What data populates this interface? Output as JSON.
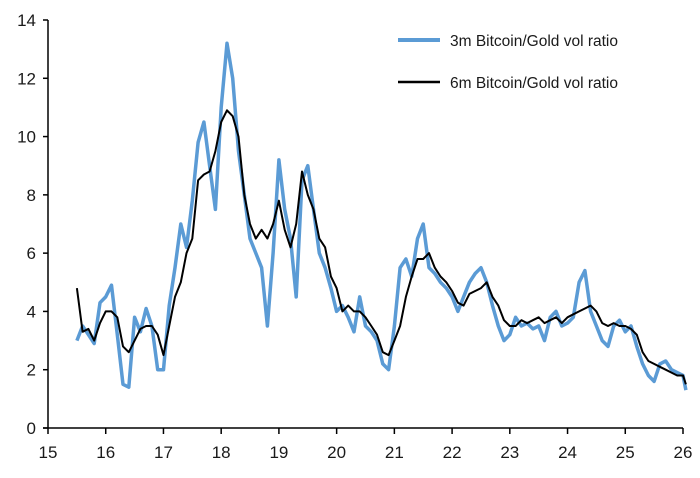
{
  "chart_data": {
    "type": "line",
    "title": "",
    "xlabel": "",
    "ylabel": "",
    "xlim": [
      15,
      26
    ],
    "ylim": [
      0,
      14
    ],
    "x_ticks": [
      "15",
      "16",
      "17",
      "18",
      "19",
      "20",
      "21",
      "22",
      "23",
      "24",
      "25",
      "26"
    ],
    "y_ticks": [
      "0",
      "2",
      "4",
      "6",
      "8",
      "10",
      "12",
      "14"
    ],
    "grid": false,
    "legend_position": "top-right",
    "x": [
      15.5,
      15.6,
      15.7,
      15.8,
      15.9,
      16.0,
      16.1,
      16.2,
      16.3,
      16.4,
      16.5,
      16.6,
      16.7,
      16.8,
      16.9,
      17.0,
      17.1,
      17.2,
      17.3,
      17.4,
      17.5,
      17.6,
      17.7,
      17.8,
      17.9,
      18.0,
      18.1,
      18.2,
      18.3,
      18.4,
      18.5,
      18.6,
      18.7,
      18.8,
      18.9,
      19.0,
      19.1,
      19.2,
      19.3,
      19.4,
      19.5,
      19.6,
      19.7,
      19.8,
      19.9,
      20.0,
      20.1,
      20.2,
      20.3,
      20.4,
      20.5,
      20.6,
      20.7,
      20.8,
      20.9,
      21.0,
      21.1,
      21.2,
      21.3,
      21.4,
      21.5,
      21.6,
      21.7,
      21.8,
      21.9,
      22.0,
      22.1,
      22.2,
      22.3,
      22.4,
      22.5,
      22.6,
      22.7,
      22.8,
      22.9,
      23.0,
      23.1,
      23.2,
      23.3,
      23.4,
      23.5,
      23.6,
      23.7,
      23.8,
      23.9,
      24.0,
      24.1,
      24.2,
      24.3,
      24.4,
      24.5,
      24.6,
      24.7,
      24.8,
      24.9,
      25.0,
      25.1,
      25.2,
      25.3,
      25.4,
      25.5,
      25.6,
      25.7,
      25.8,
      25.9,
      26.0,
      26.05
    ],
    "series": [
      {
        "name": "3m Bitcoin/Gold vol ratio",
        "color": "#5b9bd5",
        "values": [
          3.0,
          3.5,
          3.2,
          2.9,
          4.3,
          4.5,
          4.9,
          3.2,
          1.5,
          1.4,
          3.8,
          3.3,
          4.1,
          3.5,
          2.0,
          2.0,
          4.2,
          5.5,
          7.0,
          6.2,
          7.8,
          9.8,
          10.5,
          9.0,
          7.5,
          11.0,
          13.2,
          12.0,
          9.5,
          8.0,
          6.5,
          6.0,
          5.5,
          3.5,
          6.0,
          9.2,
          7.5,
          6.5,
          4.5,
          8.5,
          9.0,
          7.5,
          6.0,
          5.5,
          4.8,
          4.0,
          4.2,
          3.8,
          3.3,
          4.5,
          3.5,
          3.3,
          3.0,
          2.2,
          2.0,
          3.5,
          5.5,
          5.8,
          5.2,
          6.5,
          7.0,
          5.5,
          5.3,
          5.0,
          4.8,
          4.5,
          4.0,
          4.5,
          5.0,
          5.3,
          5.5,
          5.0,
          4.2,
          3.5,
          3.0,
          3.2,
          3.8,
          3.5,
          3.6,
          3.4,
          3.5,
          3.0,
          3.8,
          4.0,
          3.5,
          3.6,
          3.8,
          5.0,
          5.4,
          4.0,
          3.5,
          3.0,
          2.8,
          3.5,
          3.7,
          3.3,
          3.5,
          2.8,
          2.2,
          1.8,
          1.6,
          2.2,
          2.3,
          2.0,
          1.9,
          1.8,
          1.3
        ]
      },
      {
        "name": "6m Bitcoin/Gold vol ratio",
        "color": "#000000",
        "values": [
          4.8,
          3.3,
          3.4,
          3.0,
          3.6,
          4.0,
          4.0,
          3.8,
          2.8,
          2.6,
          3.0,
          3.4,
          3.5,
          3.5,
          3.2,
          2.5,
          3.5,
          4.5,
          5.0,
          6.0,
          6.5,
          8.5,
          8.7,
          8.8,
          9.5,
          10.5,
          10.9,
          10.7,
          10.0,
          8.0,
          7.0,
          6.5,
          6.8,
          6.5,
          7.0,
          7.8,
          6.8,
          6.2,
          7.0,
          8.8,
          8.0,
          7.5,
          6.5,
          6.2,
          5.2,
          4.8,
          4.0,
          4.2,
          4.0,
          4.0,
          3.8,
          3.5,
          3.2,
          2.6,
          2.5,
          3.0,
          3.5,
          4.5,
          5.2,
          5.8,
          5.8,
          6.0,
          5.5,
          5.2,
          5.0,
          4.7,
          4.3,
          4.2,
          4.6,
          4.7,
          4.8,
          5.0,
          4.5,
          4.2,
          3.7,
          3.5,
          3.5,
          3.7,
          3.6,
          3.7,
          3.8,
          3.6,
          3.7,
          3.8,
          3.6,
          3.8,
          3.9,
          4.0,
          4.1,
          4.2,
          4.0,
          3.6,
          3.5,
          3.6,
          3.5,
          3.5,
          3.4,
          3.2,
          2.6,
          2.3,
          2.2,
          2.1,
          2.0,
          1.9,
          1.8,
          1.8,
          1.5
        ]
      }
    ]
  }
}
